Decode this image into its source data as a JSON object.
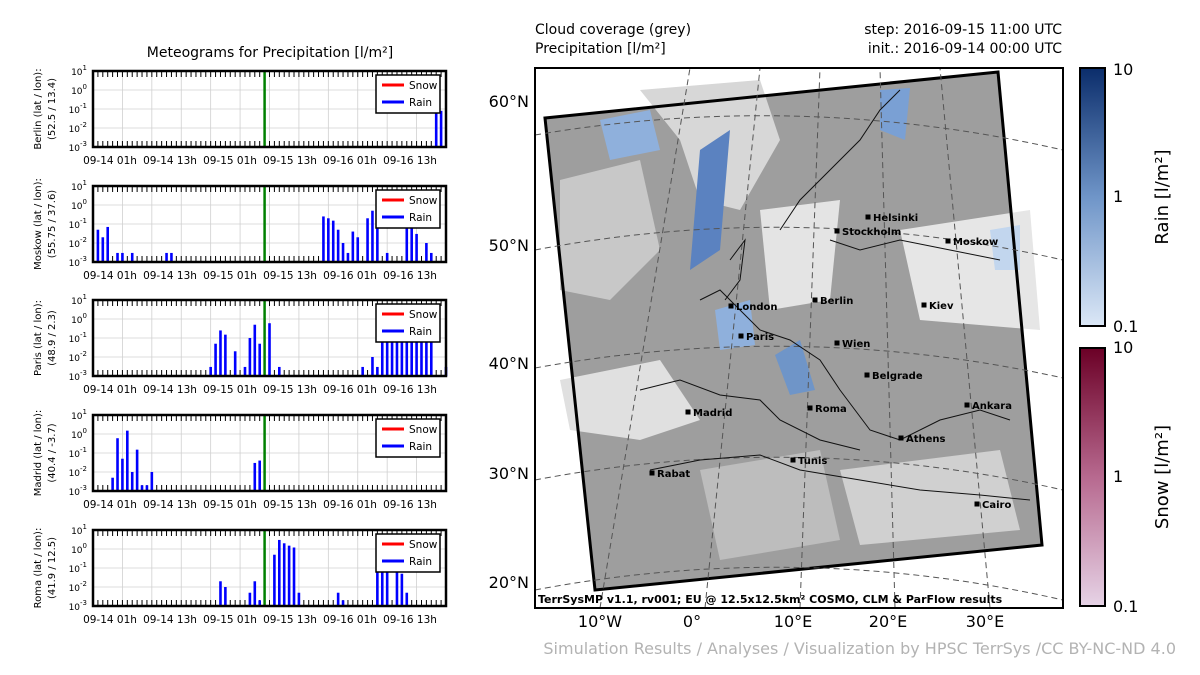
{
  "meteogram": {
    "title": "Meteograms for Precipitation [l/m²]",
    "legend": {
      "snow": "Snow",
      "rain": "Rain"
    },
    "x_tick_labels": [
      "09-14 01h",
      "09-14 13h",
      "09-15 01h",
      "09-15 13h",
      "09-16 01h",
      "09-16 13h"
    ],
    "y_tick_labels": [
      "10^1",
      "10^0",
      "10^-1",
      "10^-2",
      "10^-3"
    ],
    "colors": {
      "snow": "#ff0000",
      "rain": "#0000ff",
      "now_line": "#008000"
    }
  },
  "chart_data": [
    {
      "type": "bar",
      "station": "Berlin",
      "ylabel_line1": "Berlin (lat / lon):",
      "ylabel_line2": "(52.5 / 13.4)",
      "yscale": "log",
      "ylim": [
        0.001,
        10
      ],
      "x_hours": [
        0,
        72
      ],
      "now_hour": 35,
      "rain": [
        [
          70,
          0.08
        ],
        [
          71,
          0.08
        ]
      ],
      "snow": []
    },
    {
      "type": "bar",
      "station": "Moskow",
      "ylabel_line1": "Moskow (lat / lon):",
      "ylabel_line2": "(55.75 / 37.6)",
      "yscale": "log",
      "ylim": [
        0.001,
        10
      ],
      "x_hours": [
        0,
        72
      ],
      "now_hour": 35,
      "rain": [
        [
          1,
          0.05
        ],
        [
          2,
          0.02
        ],
        [
          3,
          0.07
        ],
        [
          5,
          0.003
        ],
        [
          6,
          0.003
        ],
        [
          8,
          0.003
        ],
        [
          15,
          0.003
        ],
        [
          16,
          0.003
        ],
        [
          47,
          0.25
        ],
        [
          48,
          0.2
        ],
        [
          49,
          0.15
        ],
        [
          50,
          0.05
        ],
        [
          51,
          0.01
        ],
        [
          52,
          0.003
        ],
        [
          53,
          0.04
        ],
        [
          54,
          0.02
        ],
        [
          56,
          0.2
        ],
        [
          57,
          0.5
        ],
        [
          58,
          0.12
        ],
        [
          60,
          0.003
        ],
        [
          64,
          0.5
        ],
        [
          65,
          0.08
        ],
        [
          66,
          0.03
        ],
        [
          68,
          0.01
        ],
        [
          69,
          0.003
        ]
      ],
      "snow": []
    },
    {
      "type": "bar",
      "station": "Paris",
      "ylabel_line1": "Paris (lat / lon):",
      "ylabel_line2": "(48.9 / 2.3)",
      "yscale": "log",
      "ylim": [
        0.001,
        10
      ],
      "x_hours": [
        0,
        72
      ],
      "now_hour": 35,
      "rain": [
        [
          24,
          0.003
        ],
        [
          25,
          0.05
        ],
        [
          26,
          0.25
        ],
        [
          27,
          0.15
        ],
        [
          29,
          0.02
        ],
        [
          31,
          0.003
        ],
        [
          32,
          0.1
        ],
        [
          33,
          0.5
        ],
        [
          34,
          0.05
        ],
        [
          36,
          0.6
        ],
        [
          38,
          0.003
        ],
        [
          55,
          0.003
        ],
        [
          57,
          0.01
        ],
        [
          58,
          0.003
        ],
        [
          59,
          0.1
        ],
        [
          60,
          0.5
        ],
        [
          61,
          0.5
        ],
        [
          62,
          0.3
        ],
        [
          63,
          0.2
        ],
        [
          64,
          0.2
        ],
        [
          65,
          0.4
        ],
        [
          66,
          0.2
        ],
        [
          67,
          0.1
        ],
        [
          68,
          0.1
        ],
        [
          69,
          0.1
        ],
        [
          72,
          0.003
        ]
      ],
      "snow": []
    },
    {
      "type": "bar",
      "station": "Madrid",
      "ylabel_line1": "Madrid (lat / lon):",
      "ylabel_line2": "(40.4 / -3.7)",
      "yscale": "log",
      "ylim": [
        0.001,
        10
      ],
      "x_hours": [
        0,
        72
      ],
      "now_hour": 35,
      "rain": [
        [
          4,
          0.005
        ],
        [
          5,
          0.6
        ],
        [
          6,
          0.05
        ],
        [
          7,
          1.5
        ],
        [
          8,
          0.01
        ],
        [
          9,
          0.15
        ],
        [
          10,
          0.002
        ],
        [
          11,
          0.002
        ],
        [
          12,
          0.01
        ],
        [
          33,
          0.03
        ],
        [
          34,
          0.04
        ]
      ],
      "snow": []
    },
    {
      "type": "bar",
      "station": "Roma",
      "ylabel_line1": "Roma (lat / lon):",
      "ylabel_line2": "(41.9 / 12.5)",
      "yscale": "log",
      "ylim": [
        0.001,
        10
      ],
      "x_hours": [
        0,
        72
      ],
      "now_hour": 35,
      "rain": [
        [
          26,
          0.02
        ],
        [
          27,
          0.01
        ],
        [
          32,
          0.005
        ],
        [
          33,
          0.02
        ],
        [
          34,
          0.002
        ],
        [
          37,
          0.5
        ],
        [
          38,
          3
        ],
        [
          39,
          2
        ],
        [
          40,
          1.5
        ],
        [
          41,
          1.2
        ],
        [
          42,
          0.005
        ],
        [
          50,
          0.005
        ],
        [
          51,
          0.002
        ],
        [
          58,
          0.08
        ],
        [
          59,
          1.2
        ],
        [
          60,
          0.3
        ],
        [
          62,
          0.1
        ],
        [
          63,
          0.05
        ],
        [
          64,
          0.005
        ]
      ],
      "snow": []
    },
    {
      "type": "heatmap",
      "header_left": [
        "Cloud coverage (grey)",
        "Precipitation [l/m²]"
      ],
      "header_right": [
        "step: 2016-09-15 11:00 UTC",
        "init.: 2016-09-14 00:00 UTC"
      ],
      "x_tick_labels": [
        "10°W",
        "0°",
        "10°E",
        "20°E",
        "30°E"
      ],
      "y_tick_labels": [
        "60°N",
        "50°N",
        "40°N",
        "30°N",
        "20°N"
      ],
      "cities": [
        "Helsinki",
        "Stockholm",
        "Moskow",
        "London",
        "Berlin",
        "Kiev",
        "Paris",
        "Wien",
        "Belgrade",
        "Madrid",
        "Roma",
        "Ankara",
        "Athens",
        "Rabat",
        "Tunis",
        "Cairo"
      ],
      "footer": "TerrSysMP v1.1, rv001; EU @ 12.5x12.5km² COSMO, CLM & ParFlow results",
      "colorbars": [
        {
          "label": "Rain [l/m²]",
          "ticks": [
            "10",
            "1",
            "0.1"
          ],
          "color_from": "#dbe7f6",
          "color_to": "#0b2d6b"
        },
        {
          "label": "Snow [l/m²]",
          "ticks": [
            "10",
            "1",
            "0.1"
          ],
          "color_from": "#e6d3e6",
          "color_to": "#6b0026"
        }
      ]
    }
  ],
  "credit": "Simulation Results / Analyses / Visualization by HPSC TerrSys /CC BY-NC-ND 4.0"
}
